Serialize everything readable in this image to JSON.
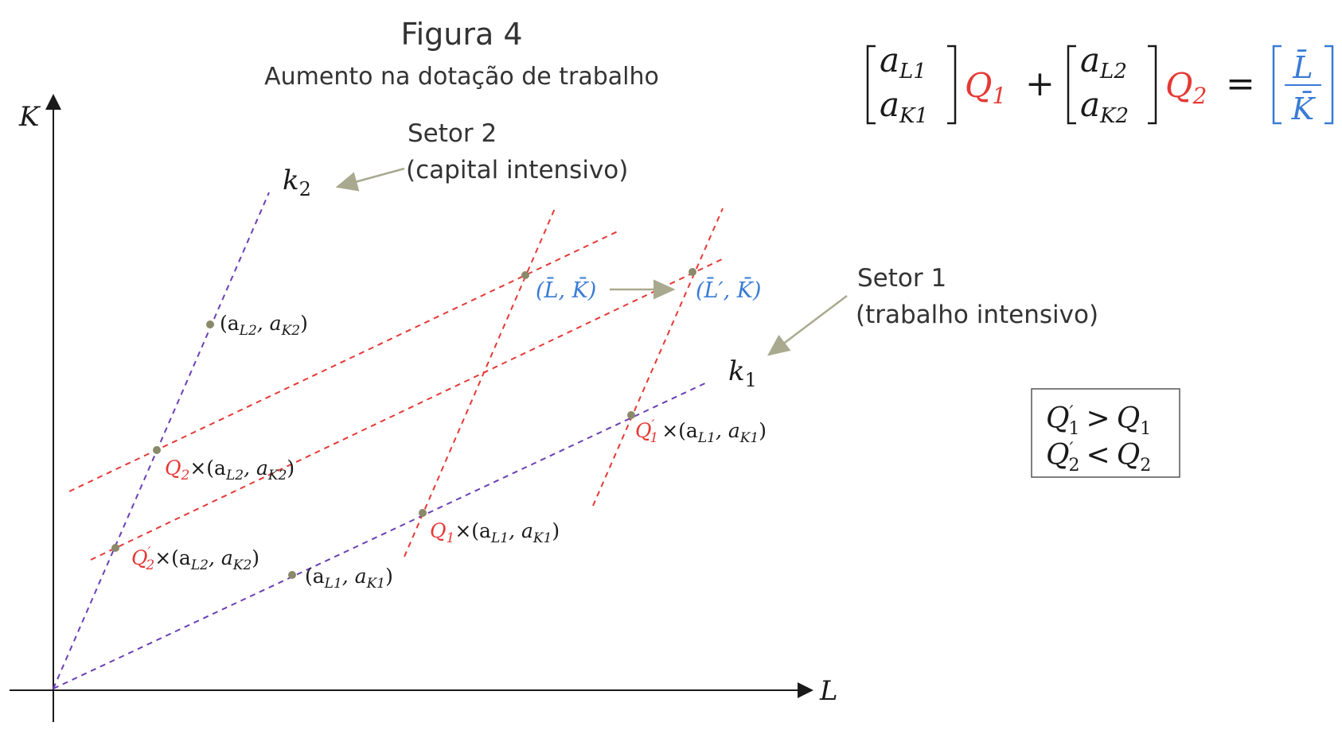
{
  "figure": {
    "title": "Figura 4",
    "subtitle": "Aumento na dotação de trabalho"
  },
  "axes": {
    "y_label": "K",
    "x_label": "L"
  },
  "sectors": {
    "sector2_name": "Setor 2",
    "sector2_desc": "(capital intensivo)",
    "sector2_ray_label": "k",
    "sector2_ray_sub": "2",
    "sector1_name": "Setor 1",
    "sector1_desc": "(trabalho intensivo)",
    "sector1_ray_label": "k",
    "sector1_ray_sub": "1"
  },
  "equation": {
    "v1_top": "a",
    "v1_top_sub": "L1",
    "v1_bot": "a",
    "v1_bot_sub": "K1",
    "q1": "Q",
    "q1_sub": "1",
    "plus": "+",
    "v2_top": "a",
    "v2_top_sub": "L2",
    "v2_bot": "a",
    "v2_bot_sub": "K2",
    "q2": "Q",
    "q2_sub": "2",
    "equals": "=",
    "rhs_top": "L̄",
    "rhs_bot": "K̄"
  },
  "points": {
    "p_ak2": "(a",
    "p_ak2_s1": "L2",
    "p_ak2_mid": ", a",
    "p_ak2_s2": "K2",
    "p_ak2_end": ")",
    "p_ak1": "(a",
    "p_ak1_s1": "L1",
    "p_ak1_mid": ", a",
    "p_ak1_s2": "K1",
    "p_ak1_end": ")",
    "q2_coef": "Q",
    "q2_coef_sub": "2",
    "q2p_coef": "Q",
    "q2p_coef_sub": "2",
    "q2p_prime": "′",
    "q1_coef": "Q",
    "q1_coef_sub": "1",
    "q1p_coef": "Q",
    "q1p_coef_sub": "1",
    "q1p_prime": "′",
    "times": "×",
    "endow": "(L̄, K̄)",
    "endow_new": "(L̄′, K̄)"
  },
  "result_box": {
    "line1_left": "Q",
    "line1_left_sub": "1",
    "line1_prime": "′",
    "line1_op": ">",
    "line1_right": "Q",
    "line1_right_sub": "1",
    "line2_left": "Q",
    "line2_left_sub": "2",
    "line2_prime": "′",
    "line2_op": "<",
    "line2_right": "Q",
    "line2_right_sub": "2"
  },
  "colors": {
    "red": "#e53935",
    "blue": "#3a7bd5",
    "purple": "#6a3fb5",
    "arrow": "#a9a98f",
    "dot": "#8a8a6a"
  }
}
